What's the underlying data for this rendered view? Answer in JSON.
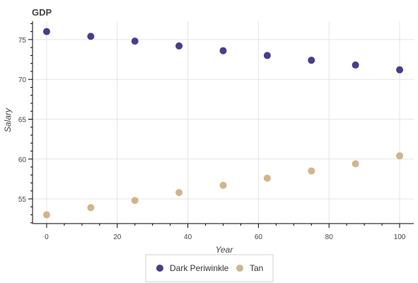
{
  "chart_data": {
    "type": "scatter",
    "title": "GDP",
    "xlabel": "Year",
    "ylabel": "Salary",
    "xlim": [
      -4,
      104
    ],
    "ylim": [
      51.9,
      77.3
    ],
    "x_ticks": [
      0,
      20,
      40,
      60,
      80,
      100
    ],
    "y_ticks": [
      55,
      60,
      65,
      70,
      75
    ],
    "grid": true,
    "legend_position": "bottom-center",
    "series": [
      {
        "name": "Dark Periwinkle",
        "color": "#483d8b",
        "x": [
          0,
          12.5,
          25,
          37.5,
          50,
          62.5,
          75,
          87.5,
          100
        ],
        "y": [
          76.0,
          75.4,
          74.8,
          74.2,
          73.6,
          73.0,
          72.4,
          71.8,
          71.2
        ]
      },
      {
        "name": "Tan",
        "color": "#d2b48c",
        "x": [
          0,
          12.5,
          25,
          37.5,
          50,
          62.5,
          75,
          87.5,
          100
        ],
        "y": [
          53.0,
          53.9,
          54.8,
          55.8,
          56.7,
          57.6,
          58.5,
          59.4,
          60.4
        ]
      }
    ]
  }
}
